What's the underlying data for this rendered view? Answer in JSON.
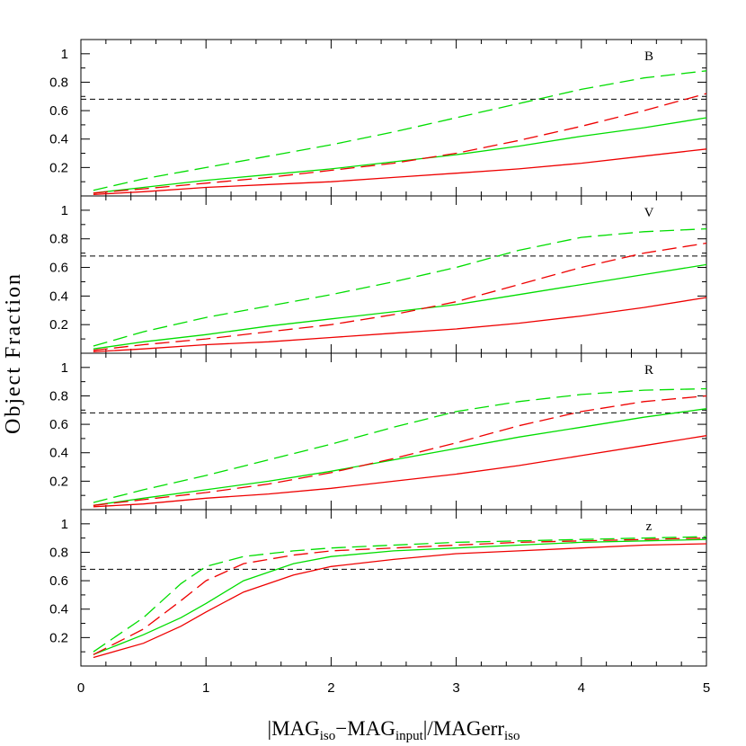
{
  "chart_data": {
    "type": "line",
    "ylabel": "Object Fraction",
    "xlabel": {
      "open_bar": "|",
      "mag": "MAG",
      "iso_sub": "iso",
      "minus": "−",
      "mag2": "MAG",
      "input_sub": "input",
      "close_bar": "|",
      "slash": "/",
      "magerr": "MAGerr",
      "iso_sub2": "iso"
    },
    "xlim": [
      0,
      5
    ],
    "ylim": [
      0,
      1.1
    ],
    "x_ticks": [
      "0",
      "1",
      "2",
      "3",
      "4",
      "5"
    ],
    "y_ticks": [
      "0.2",
      "0.4",
      "0.6",
      "0.8",
      "1"
    ],
    "reference_line_y": 0.68,
    "colors": {
      "green": "#00dd00",
      "red": "#ee0000",
      "reference": "#000000"
    },
    "panels": [
      {
        "label": "B",
        "series": [
          {
            "color": "green",
            "style": "dashed",
            "x": [
              0.1,
              0.5,
              1,
              1.5,
              2,
              2.5,
              3,
              3.5,
              4,
              4.5,
              5
            ],
            "y": [
              0.04,
              0.12,
              0.2,
              0.28,
              0.36,
              0.45,
              0.55,
              0.65,
              0.75,
              0.83,
              0.88
            ]
          },
          {
            "color": "green",
            "style": "solid",
            "x": [
              0.1,
              0.5,
              1,
              1.5,
              2,
              2.5,
              3,
              3.5,
              4,
              4.5,
              5
            ],
            "y": [
              0.02,
              0.06,
              0.11,
              0.15,
              0.19,
              0.24,
              0.29,
              0.35,
              0.42,
              0.48,
              0.55
            ]
          },
          {
            "color": "red",
            "style": "dashed",
            "x": [
              0.1,
              0.5,
              1,
              1.5,
              2,
              2.5,
              3,
              3.5,
              4,
              4.5,
              5
            ],
            "y": [
              0.02,
              0.05,
              0.09,
              0.13,
              0.18,
              0.23,
              0.3,
              0.39,
              0.49,
              0.6,
              0.72
            ]
          },
          {
            "color": "red",
            "style": "solid",
            "x": [
              0.1,
              0.5,
              1,
              1.5,
              2,
              2.5,
              3,
              3.5,
              4,
              4.5,
              5
            ],
            "y": [
              0.01,
              0.03,
              0.06,
              0.08,
              0.1,
              0.13,
              0.16,
              0.19,
              0.23,
              0.28,
              0.33
            ]
          }
        ]
      },
      {
        "label": "V",
        "series": [
          {
            "color": "green",
            "style": "dashed",
            "x": [
              0.1,
              0.5,
              1,
              1.5,
              2,
              2.5,
              3,
              3.5,
              4,
              4.5,
              5
            ],
            "y": [
              0.05,
              0.15,
              0.25,
              0.33,
              0.41,
              0.5,
              0.6,
              0.72,
              0.81,
              0.85,
              0.87
            ]
          },
          {
            "color": "green",
            "style": "solid",
            "x": [
              0.1,
              0.5,
              1,
              1.5,
              2,
              2.5,
              3,
              3.5,
              4,
              4.5,
              5
            ],
            "y": [
              0.03,
              0.08,
              0.13,
              0.19,
              0.24,
              0.29,
              0.34,
              0.41,
              0.48,
              0.55,
              0.62
            ]
          },
          {
            "color": "red",
            "style": "dashed",
            "x": [
              0.1,
              0.5,
              1,
              1.5,
              2,
              2.5,
              3,
              3.5,
              4,
              4.5,
              5
            ],
            "y": [
              0.02,
              0.06,
              0.1,
              0.15,
              0.2,
              0.27,
              0.36,
              0.48,
              0.6,
              0.7,
              0.77
            ]
          },
          {
            "color": "red",
            "style": "solid",
            "x": [
              0.1,
              0.5,
              1,
              1.5,
              2,
              2.5,
              3,
              3.5,
              4,
              4.5,
              5
            ],
            "y": [
              0.01,
              0.03,
              0.06,
              0.08,
              0.11,
              0.14,
              0.17,
              0.21,
              0.26,
              0.32,
              0.39
            ]
          }
        ]
      },
      {
        "label": "R",
        "series": [
          {
            "color": "green",
            "style": "dashed",
            "x": [
              0.1,
              0.5,
              1,
              1.5,
              2,
              2.5,
              3,
              3.5,
              4,
              4.5,
              5
            ],
            "y": [
              0.05,
              0.14,
              0.24,
              0.35,
              0.46,
              0.58,
              0.69,
              0.76,
              0.81,
              0.84,
              0.85
            ]
          },
          {
            "color": "green",
            "style": "solid",
            "x": [
              0.1,
              0.5,
              1,
              1.5,
              2,
              2.5,
              3,
              3.5,
              4,
              4.5,
              5
            ],
            "y": [
              0.03,
              0.08,
              0.14,
              0.2,
              0.27,
              0.35,
              0.43,
              0.51,
              0.58,
              0.65,
              0.71
            ]
          },
          {
            "color": "red",
            "style": "dashed",
            "x": [
              0.1,
              0.5,
              1,
              1.5,
              2,
              2.5,
              3,
              3.5,
              4,
              4.5,
              5
            ],
            "y": [
              0.03,
              0.07,
              0.12,
              0.18,
              0.26,
              0.36,
              0.47,
              0.59,
              0.69,
              0.76,
              0.8
            ]
          },
          {
            "color": "red",
            "style": "solid",
            "x": [
              0.1,
              0.5,
              1,
              1.5,
              2,
              2.5,
              3,
              3.5,
              4,
              4.5,
              5
            ],
            "y": [
              0.02,
              0.04,
              0.08,
              0.11,
              0.15,
              0.2,
              0.25,
              0.31,
              0.38,
              0.45,
              0.52
            ]
          }
        ]
      },
      {
        "label": "z",
        "series": [
          {
            "color": "green",
            "style": "dashed",
            "x": [
              0.1,
              0.5,
              0.8,
              1,
              1.3,
              1.7,
              2,
              2.5,
              3,
              3.5,
              4,
              4.5,
              5
            ],
            "y": [
              0.1,
              0.34,
              0.58,
              0.7,
              0.77,
              0.81,
              0.83,
              0.85,
              0.87,
              0.88,
              0.89,
              0.9,
              0.91
            ]
          },
          {
            "color": "green",
            "style": "solid",
            "x": [
              0.1,
              0.5,
              0.8,
              1,
              1.3,
              1.7,
              2,
              2.5,
              3,
              3.5,
              4,
              4.5,
              5
            ],
            "y": [
              0.08,
              0.22,
              0.34,
              0.44,
              0.6,
              0.72,
              0.77,
              0.81,
              0.83,
              0.85,
              0.87,
              0.88,
              0.89
            ]
          },
          {
            "color": "red",
            "style": "dashed",
            "x": [
              0.1,
              0.5,
              0.8,
              1,
              1.3,
              1.7,
              2,
              2.5,
              3,
              3.5,
              4,
              4.5,
              5
            ],
            "y": [
              0.08,
              0.26,
              0.46,
              0.6,
              0.72,
              0.78,
              0.81,
              0.83,
              0.85,
              0.87,
              0.88,
              0.89,
              0.9
            ]
          },
          {
            "color": "red",
            "style": "solid",
            "x": [
              0.1,
              0.5,
              0.8,
              1,
              1.3,
              1.7,
              2,
              2.5,
              3,
              3.5,
              4,
              4.5,
              5
            ],
            "y": [
              0.06,
              0.16,
              0.28,
              0.38,
              0.52,
              0.64,
              0.7,
              0.75,
              0.79,
              0.81,
              0.83,
              0.85,
              0.86
            ]
          }
        ]
      }
    ]
  }
}
